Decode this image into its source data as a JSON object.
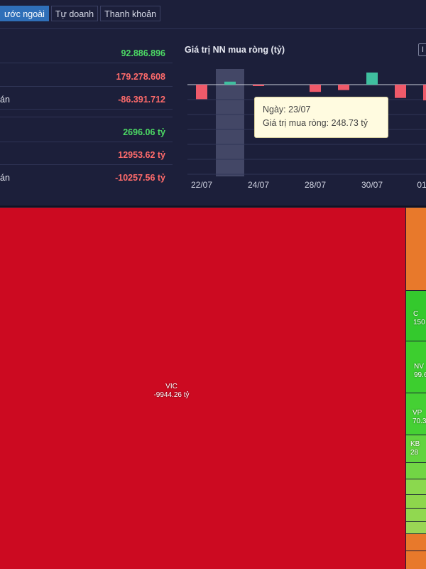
{
  "tabs": [
    {
      "label": "ước ngoài"
    },
    {
      "label": "Tự doanh"
    },
    {
      "label": "Thanh khoản"
    }
  ],
  "stats": [
    {
      "label": "",
      "value": "92.886.896",
      "color": "#4cd964"
    },
    {
      "label": "",
      "value": "179.278.608",
      "color": "#ff6b6b"
    },
    {
      "label": "án",
      "value": "-86.391.712",
      "color": "#ff6b6b"
    },
    {
      "label": "",
      "value": "",
      "color": "#ffffff"
    },
    {
      "label": "",
      "value": "2696.06 tỷ",
      "color": "#4cd964"
    },
    {
      "label": "",
      "value": "12953.62 tỷ",
      "color": "#ff6b6b"
    },
    {
      "label": "án",
      "value": "-10257.56 tỷ",
      "color": "#ff6b6b"
    }
  ],
  "chart": {
    "button_label": "I"
  },
  "tooltip": {
    "line1": "Ngày: 23/07",
    "line2": "Giá trị mua ròng: 248.73 tỷ"
  },
  "chart_data": {
    "type": "bar",
    "title": "Giá trị NN mua ròng (tỷ)",
    "xlabel": "",
    "ylabel": "",
    "tick_labels": [
      "22/07",
      "24/07",
      "28/07",
      "30/07",
      "01"
    ],
    "bars": [
      {
        "date": "22/07",
        "value": -1200
      },
      {
        "date": "23/07",
        "value": 248.73
      },
      {
        "date": "24/07",
        "value": -60
      },
      {
        "date": "25/07",
        "value": 0
      },
      {
        "date": "28/07",
        "value": -600
      },
      {
        "date": "29/07",
        "value": -450
      },
      {
        "date": "30/07",
        "value": 1000
      },
      {
        "date": "31/07",
        "value": -1100
      },
      {
        "date": "01/08",
        "value": -1300
      }
    ],
    "highlighted_date": "23/07",
    "positive_color": "#3fbf9f",
    "negative_color": "#ef5a6a"
  },
  "treemap": {
    "main": {
      "ticker": "VIC",
      "value": "-9944.26 tỷ",
      "color": "#cc0a21"
    },
    "side": [
      {
        "ticker": "",
        "value": "",
        "color": "#e8792b"
      },
      {
        "ticker": "C",
        "value": "150",
        "color": "#34c92d"
      },
      {
        "ticker": "NV",
        "value": "99.6",
        "color": "#3dce2f"
      },
      {
        "ticker": "VP",
        "value": "70.3",
        "color": "#45d034"
      },
      {
        "ticker": "KB",
        "value": "28",
        "color": "#62d43f"
      },
      {
        "ticker": "",
        "value": "",
        "color": "#72d545"
      },
      {
        "ticker": "",
        "value": "",
        "color": "#8bd84e"
      },
      {
        "ticker": "",
        "value": "",
        "color": "#8ed64c"
      },
      {
        "ticker": "",
        "value": "",
        "color": "#91d850"
      },
      {
        "ticker": "",
        "value": "",
        "color": "#9ad655"
      },
      {
        "ticker": "",
        "value": "",
        "color": "#e8792b"
      },
      {
        "ticker": "",
        "value": "",
        "color": "#e8792b"
      }
    ]
  }
}
